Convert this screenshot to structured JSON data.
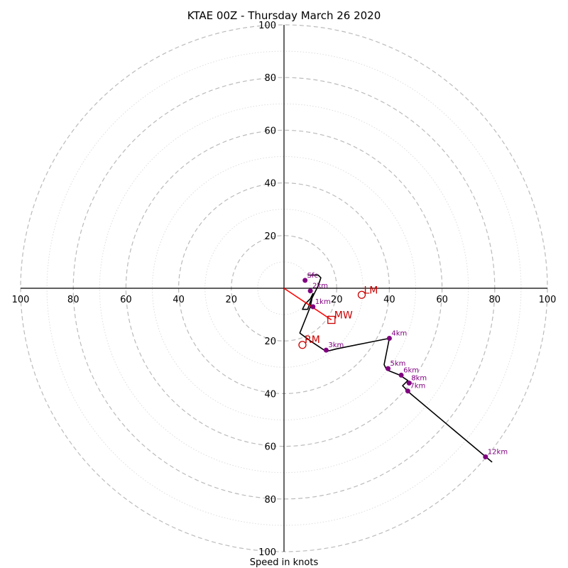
{
  "chart_data": {
    "type": "hodograph",
    "title": "KTAE 00Z - Thursday March 26 2020",
    "xlabel": "Speed in knots",
    "units": "knots",
    "ring_max": 100,
    "major_rings": [
      20,
      40,
      60,
      80,
      100
    ],
    "minor_rings": [
      10,
      30,
      50,
      70,
      90
    ],
    "tick_labels": [
      "100",
      "80",
      "60",
      "40",
      "20",
      "20",
      "40",
      "60",
      "80",
      "100"
    ],
    "hodograph_trace": [
      [
        9,
        5
      ],
      [
        13,
        5
      ],
      [
        14,
        4
      ],
      [
        13,
        1
      ],
      [
        10,
        -5
      ],
      [
        9,
        -8
      ],
      [
        7,
        -8
      ],
      [
        8,
        -6
      ],
      [
        10,
        -4
      ],
      [
        11,
        -2
      ],
      [
        10,
        -7
      ],
      [
        6,
        -17
      ],
      [
        10,
        -20
      ],
      [
        13,
        -22
      ],
      [
        16,
        -24
      ],
      [
        20,
        -23
      ],
      [
        30,
        -21
      ],
      [
        40,
        -19
      ],
      [
        38,
        -29
      ],
      [
        39,
        -31
      ],
      [
        44,
        -33
      ],
      [
        47,
        -35
      ],
      [
        45,
        -37
      ],
      [
        48,
        -40
      ],
      [
        79,
        -66
      ]
    ],
    "height_markers": [
      {
        "label": "Sfc",
        "u": 8,
        "v": 3
      },
      {
        "label": "1km",
        "u": 11,
        "v": -7
      },
      {
        "label": "2km",
        "u": 10,
        "v": -1
      },
      {
        "label": "3km",
        "u": 16,
        "v": -23.5
      },
      {
        "label": "4km",
        "u": 40,
        "v": -19
      },
      {
        "label": "5km",
        "u": 39.5,
        "v": -30.5
      },
      {
        "label": "6km",
        "u": 44.5,
        "v": -33
      },
      {
        "label": "7km",
        "u": 47,
        "v": -39
      },
      {
        "label": "8km",
        "u": 47.5,
        "v": -36
      },
      {
        "label": "12km",
        "u": 76.5,
        "v": -64
      }
    ],
    "storm_motion": {
      "RM": {
        "label": "RM",
        "u": 7,
        "v": -21.5
      },
      "LM": {
        "label": "LM",
        "u": 29.5,
        "v": -2.5
      },
      "MW": {
        "label": "MW",
        "u": 18,
        "v": -12
      },
      "shear_vector": [
        [
          0,
          0
        ],
        [
          18,
          -12
        ]
      ]
    },
    "colors": {
      "trace": "#000000",
      "markers": "#800080",
      "storm_motion": "#cc0000",
      "shear_vector": "#ff0000",
      "major_ring": "#bbbbbb",
      "minor_ring": "#dddddd"
    }
  }
}
